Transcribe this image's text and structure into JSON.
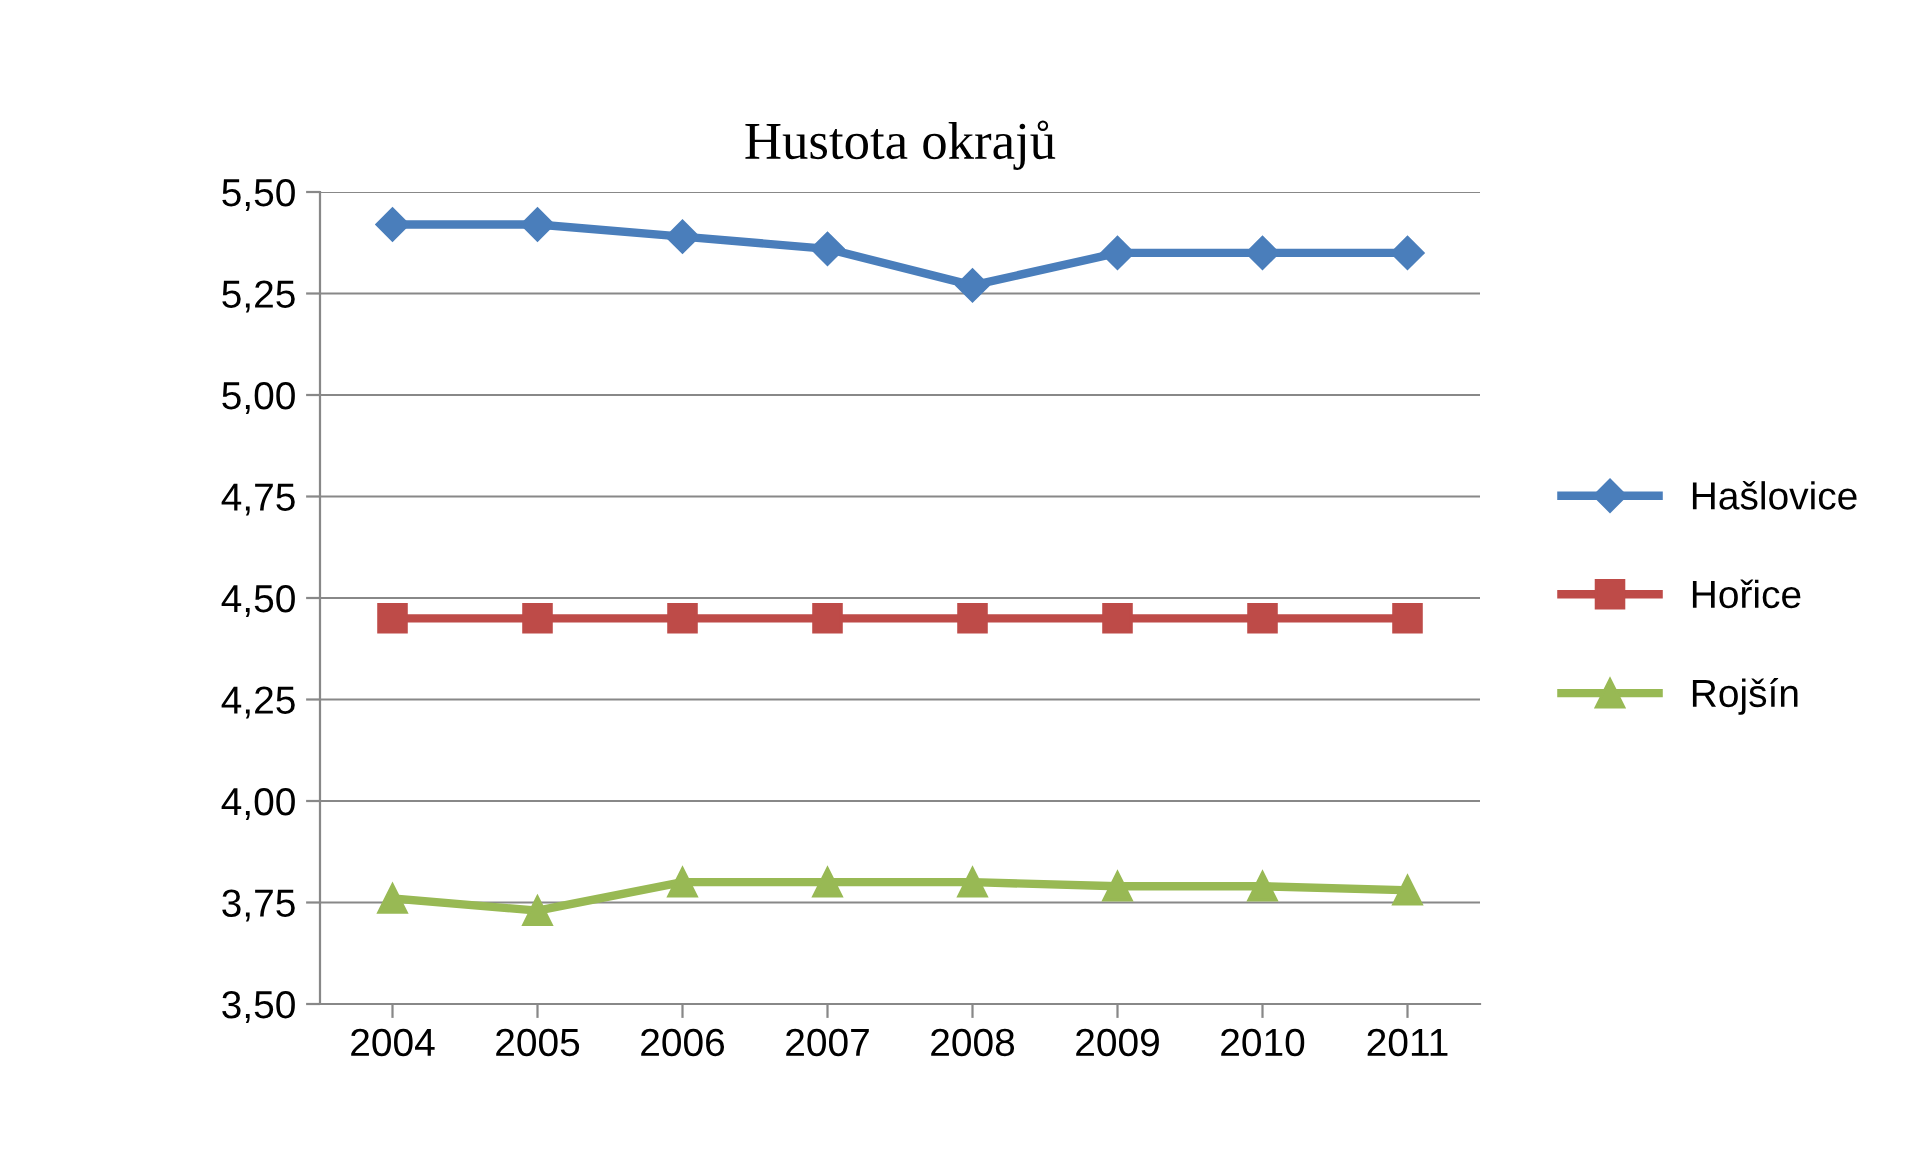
{
  "chart_data": {
    "type": "line",
    "title": "Hustota okrajů",
    "categories": [
      "2004",
      "2005",
      "2006",
      "2007",
      "2008",
      "2009",
      "2010",
      "2011"
    ],
    "series": [
      {
        "name": "Hašlovice",
        "color": "#4a7ebb",
        "marker": "diamond",
        "values": [
          5.42,
          5.42,
          5.39,
          5.36,
          5.27,
          5.35,
          5.35,
          5.35
        ]
      },
      {
        "name": "Hořice",
        "color": "#be4b48",
        "marker": "square",
        "values": [
          4.45,
          4.45,
          4.45,
          4.45,
          4.45,
          4.45,
          4.45,
          4.45
        ]
      },
      {
        "name": "Rojšín",
        "color": "#98b954",
        "marker": "triangle",
        "values": [
          3.76,
          3.73,
          3.8,
          3.8,
          3.8,
          3.79,
          3.79,
          3.78
        ]
      }
    ],
    "ylim": [
      3.5,
      5.5
    ],
    "yticks": [
      {
        "value": 3.5,
        "label": "3,50"
      },
      {
        "value": 3.75,
        "label": "3,75"
      },
      {
        "value": 4.0,
        "label": "4,00"
      },
      {
        "value": 4.25,
        "label": "4,25"
      },
      {
        "value": 4.5,
        "label": "4,50"
      },
      {
        "value": 4.75,
        "label": "4,75"
      },
      {
        "value": 5.0,
        "label": "5,00"
      },
      {
        "value": 5.25,
        "label": "5,25"
      },
      {
        "value": 5.5,
        "label": "5,50"
      }
    ],
    "grid": "y",
    "legend": "right",
    "line_style": "solid"
  }
}
